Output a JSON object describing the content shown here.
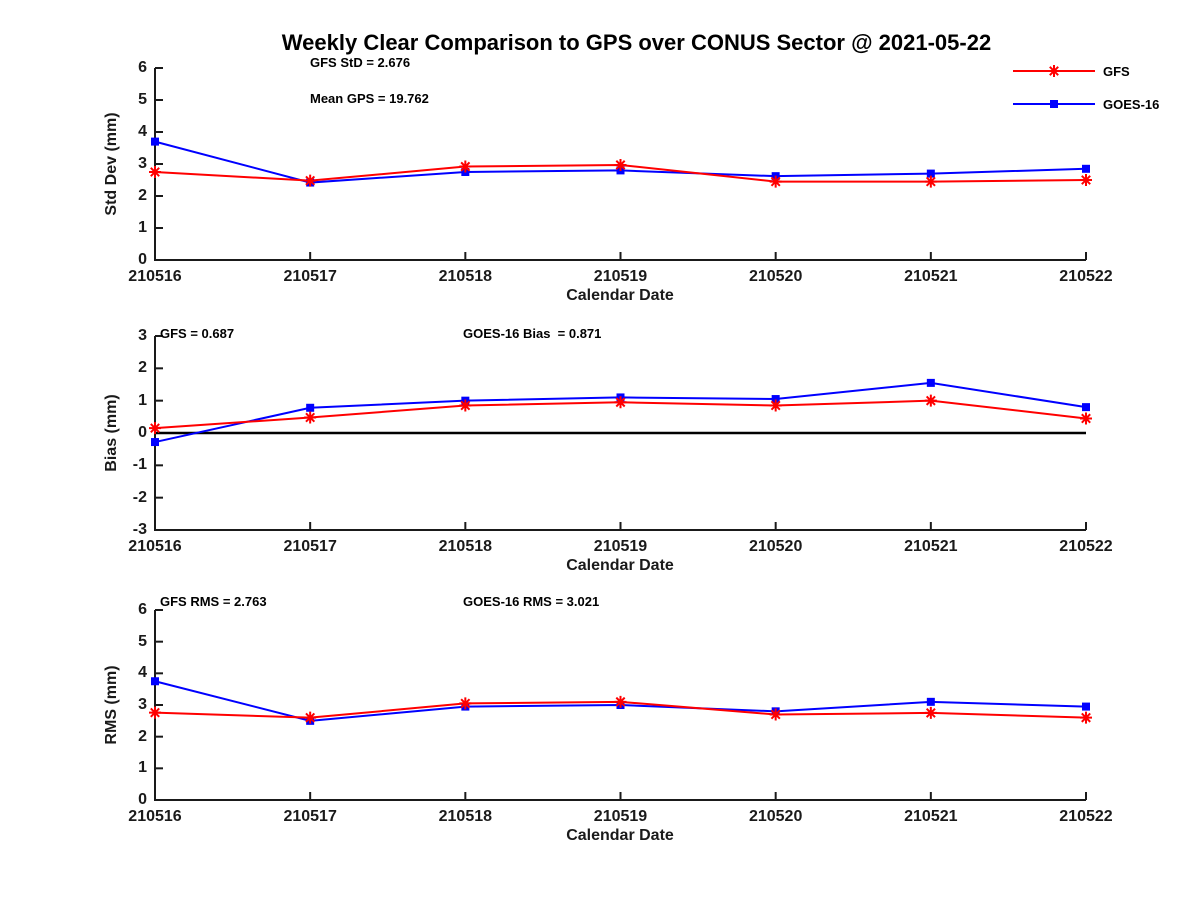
{
  "title": "Weekly Clear Comparison to GPS over CONUS Sector @ 2021-05-22",
  "legend": {
    "items": [
      {
        "label": "GFS",
        "color": "#ff0000",
        "marker": "asterisk"
      },
      {
        "label": "GOES-16",
        "color": "#0000ff",
        "marker": "square"
      }
    ],
    "position": "top-right"
  },
  "colors": {
    "gfs": "#ff0000",
    "goes16": "#0000ff",
    "axis": "#1a1a1a",
    "zero_line": "#000000"
  },
  "chart_data": [
    {
      "type": "line",
      "ylabel": "Std Dev (mm)",
      "xlabel": "Calendar Date",
      "categories": [
        "210516",
        "210517",
        "210518",
        "210519",
        "210520",
        "210521",
        "210522"
      ],
      "ylim": [
        0,
        6
      ],
      "yticks": [
        0,
        1,
        2,
        3,
        4,
        5,
        6
      ],
      "grid": false,
      "zero_line": false,
      "series": [
        {
          "name": "GFS",
          "color": "#ff0000",
          "marker": "asterisk",
          "values": [
            2.75,
            2.48,
            2.92,
            2.97,
            2.45,
            2.45,
            2.5
          ]
        },
        {
          "name": "GOES-16",
          "color": "#0000ff",
          "marker": "square",
          "values": [
            3.7,
            2.42,
            2.75,
            2.8,
            2.62,
            2.7,
            2.85
          ]
        }
      ],
      "annotations": [
        "GFS StD = 2.676",
        "Mean GPS = 19.762"
      ]
    },
    {
      "type": "line",
      "ylabel": "Bias (mm)",
      "xlabel": "Calendar Date",
      "categories": [
        "210516",
        "210517",
        "210518",
        "210519",
        "210520",
        "210521",
        "210522"
      ],
      "ylim": [
        -3,
        3
      ],
      "yticks": [
        -3,
        -2,
        -1,
        0,
        1,
        2,
        3
      ],
      "grid": false,
      "zero_line": true,
      "series": [
        {
          "name": "GFS",
          "color": "#ff0000",
          "marker": "asterisk",
          "values": [
            0.15,
            0.48,
            0.85,
            0.95,
            0.85,
            1.0,
            0.45
          ]
        },
        {
          "name": "GOES-16",
          "color": "#0000ff",
          "marker": "square",
          "values": [
            -0.28,
            0.78,
            1.0,
            1.1,
            1.05,
            1.55,
            0.8
          ]
        }
      ],
      "annotations": [
        "GFS = 0.687",
        "GOES-16 Bias  = 0.871"
      ]
    },
    {
      "type": "line",
      "ylabel": "RMS (mm)",
      "xlabel": "Calendar Date",
      "categories": [
        "210516",
        "210517",
        "210518",
        "210519",
        "210520",
        "210521",
        "210522"
      ],
      "ylim": [
        0,
        6
      ],
      "yticks": [
        0,
        1,
        2,
        3,
        4,
        5,
        6
      ],
      "grid": false,
      "zero_line": false,
      "series": [
        {
          "name": "GFS",
          "color": "#ff0000",
          "marker": "asterisk",
          "values": [
            2.76,
            2.6,
            3.05,
            3.1,
            2.7,
            2.75,
            2.6
          ]
        },
        {
          "name": "GOES-16",
          "color": "#0000ff",
          "marker": "square",
          "values": [
            3.75,
            2.5,
            2.95,
            3.0,
            2.8,
            3.1,
            2.95
          ]
        }
      ],
      "annotations": [
        "GFS RMS = 2.763",
        "GOES-16 RMS = 3.021"
      ]
    }
  ]
}
